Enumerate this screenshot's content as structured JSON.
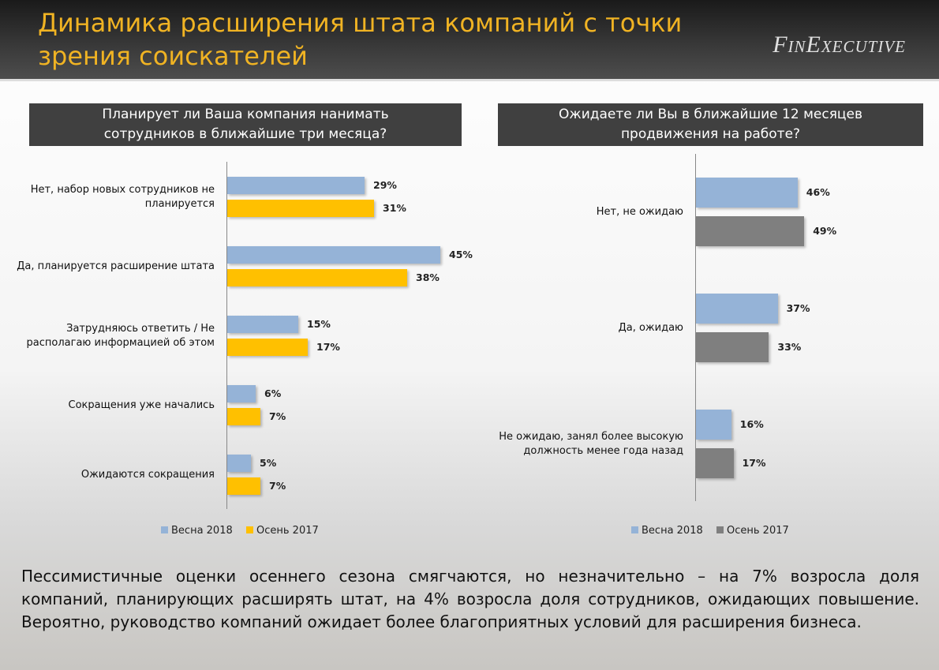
{
  "header": {
    "title": "Динамика расширения штата компаний с точки зрения соискателей",
    "logo": "FinExecutive"
  },
  "chart_data": [
    {
      "type": "bar",
      "orientation": "horizontal",
      "title": "Планирует ли Ваша компания нанимать сотрудников в ближайшие три месяца?",
      "categories": [
        "Нет, набор новых сотрудников не планируется",
        "Да, планируется расширение штата",
        "Затрудняюсь ответить / Не располагаю информацией об этом",
        "Сокращения уже начались",
        "Ожидаются сокращения"
      ],
      "series": [
        {
          "name": "Весна 2018",
          "color": "#95b3d7",
          "values": [
            29,
            45,
            15,
            6,
            5
          ],
          "value_labels": [
            "29%",
            "45%",
            "15%",
            "6%",
            "5%"
          ]
        },
        {
          "name": "Осень 2017",
          "color": "#ffc000",
          "values": [
            31,
            38,
            17,
            7,
            7
          ],
          "value_labels": [
            "31%",
            "38%",
            "17%",
            "7%",
            "7%"
          ]
        }
      ]
    },
    {
      "type": "bar",
      "orientation": "horizontal",
      "title": "Ожидаете ли Вы в ближайшие 12 месяцев продвижения на работе?",
      "categories": [
        "Нет, не ожидаю",
        "Да, ожидаю",
        "Не ожидаю, занял более высокую должность менее года назад"
      ],
      "series": [
        {
          "name": "Весна 2018",
          "color": "#95b3d7",
          "values": [
            46,
            37,
            16
          ],
          "value_labels": [
            "46%",
            "37%",
            "16%"
          ]
        },
        {
          "name": "Осень 2017",
          "color": "#7f7f7f",
          "values": [
            49,
            33,
            17
          ],
          "value_labels": [
            "49%",
            "33%",
            "17%"
          ]
        }
      ]
    }
  ],
  "footer": {
    "text": "Пессимистичные оценки осеннего сезона смягчаются, но незначительно – на 7% возросла доля компаний, планирующих расширять штат, на 4% возросла доля сотрудников, ожидающих повышение. Вероятно, руководство компаний ожидает более благоприятных условий для расширения бизнеса."
  }
}
